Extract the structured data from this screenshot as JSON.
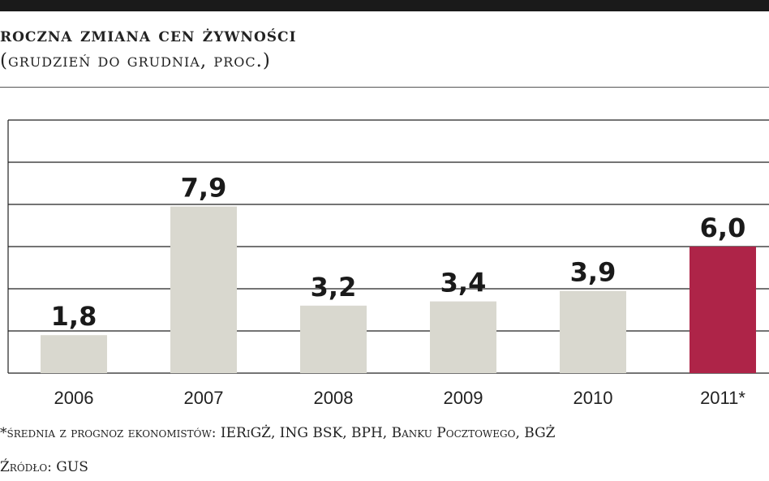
{
  "header": {
    "title": "roczna zmiana cen żywności",
    "subtitle": "(grudzień do grudnia, proc.)"
  },
  "footer": {
    "note": "*średnia z prognoz ekonomistów: IERiGŻ, ING BSK, BPH, Banku Pocztowego, BGŻ",
    "source": "Źródło: GUS"
  },
  "chart_data": {
    "type": "bar",
    "categories": [
      "2006",
      "2007",
      "2008",
      "2009",
      "2010",
      "2011*"
    ],
    "values": [
      1.8,
      7.9,
      3.2,
      3.4,
      3.9,
      6.0
    ],
    "value_labels": [
      "1,8",
      "7,9",
      "3,2",
      "3,4",
      "3,9",
      "6,0"
    ],
    "yticks": [
      "0",
      "2",
      "4",
      "6",
      "8",
      "10",
      "12"
    ],
    "ylim": [
      0,
      12
    ],
    "grid": true,
    "colors": {
      "default": "#d9d8cf",
      "highlight": "#ae2448"
    },
    "highlight_index": 5
  }
}
